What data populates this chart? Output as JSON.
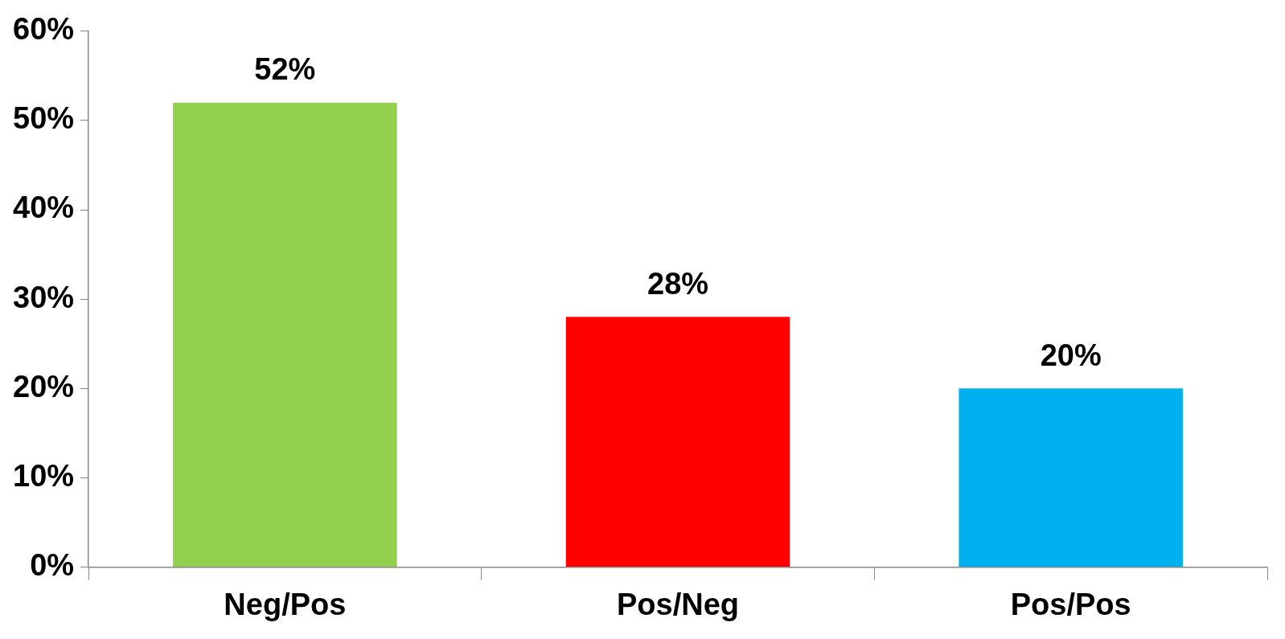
{
  "chart_data": {
    "type": "bar",
    "categories": [
      "Neg/Pos",
      "Pos/Neg",
      "Pos/Pos"
    ],
    "values": [
      52,
      28,
      20
    ],
    "colors": [
      "#92d050",
      "#ff0000",
      "#00b0f0"
    ],
    "value_labels": [
      "52%",
      "28%",
      "20%"
    ],
    "ylim": [
      0,
      60
    ],
    "yticks": [
      {
        "value": 0,
        "label": "0%"
      },
      {
        "value": 10,
        "label": "10%"
      },
      {
        "value": 20,
        "label": "20%"
      },
      {
        "value": 30,
        "label": "30%"
      },
      {
        "value": 40,
        "label": "40%"
      },
      {
        "value": 50,
        "label": "50%"
      },
      {
        "value": 60,
        "label": "60%"
      }
    ],
    "grid": false,
    "legend": false
  }
}
